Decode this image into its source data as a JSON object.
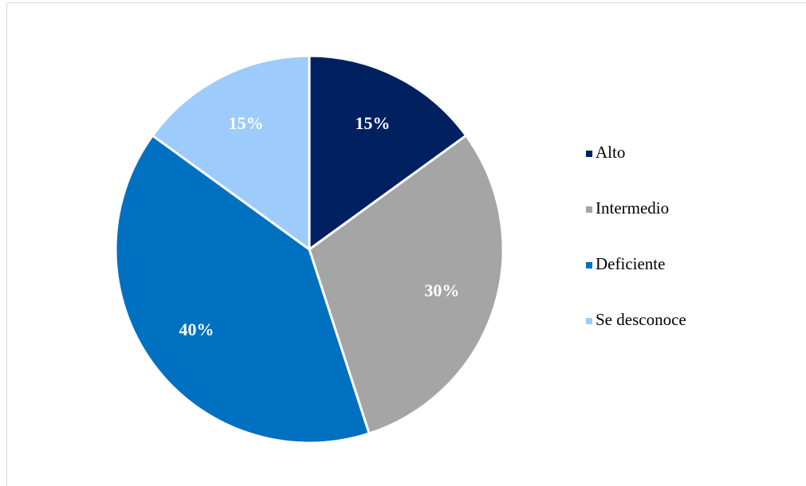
{
  "chart_data": {
    "type": "pie",
    "categories": [
      "Alto",
      "Intermedio",
      "Deficiente",
      "Se desconoce"
    ],
    "values": [
      15,
      30,
      40,
      15
    ],
    "value_labels": [
      "15%",
      "30%",
      "40%",
      "15%"
    ],
    "colors": [
      "#002060",
      "#a5a5a5",
      "#0070c0",
      "#9dcbfb"
    ],
    "legend": "right"
  }
}
